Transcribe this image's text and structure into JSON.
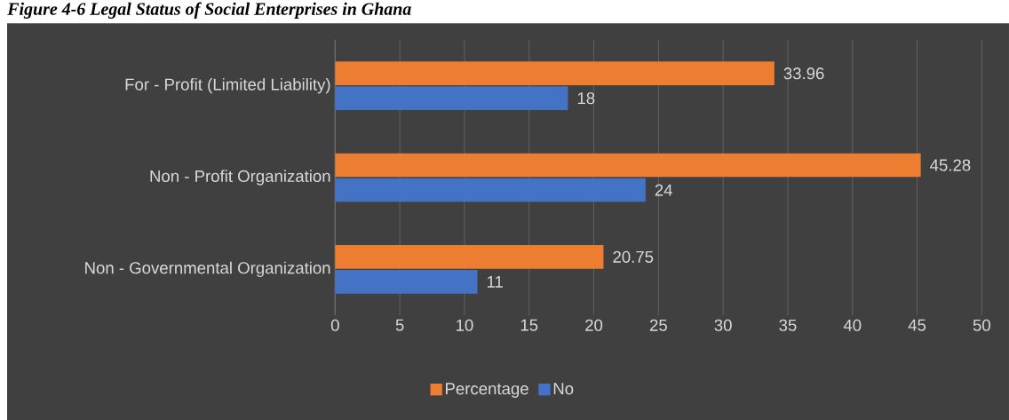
{
  "chart_data": {
    "type": "bar",
    "orientation": "horizontal",
    "title": "Figure 4-6 Legal Status of Social Enterprises in Ghana",
    "categories": [
      "For - Profit (Limited Liability)",
      "Non - Profit Organization",
      "Non - Governmental Organization"
    ],
    "series": [
      {
        "name": "Percentage",
        "color": "#ed7d31",
        "values": [
          33.96,
          45.28,
          20.75
        ]
      },
      {
        "name": "No",
        "color": "#4472c4",
        "values": [
          18,
          24,
          11
        ]
      }
    ],
    "xlim": [
      0,
      50
    ],
    "xticks": [
      0,
      5,
      10,
      15,
      20,
      25,
      30,
      35,
      40,
      45,
      50
    ],
    "grid": "x",
    "legend": "bottom",
    "data_labels": true
  }
}
